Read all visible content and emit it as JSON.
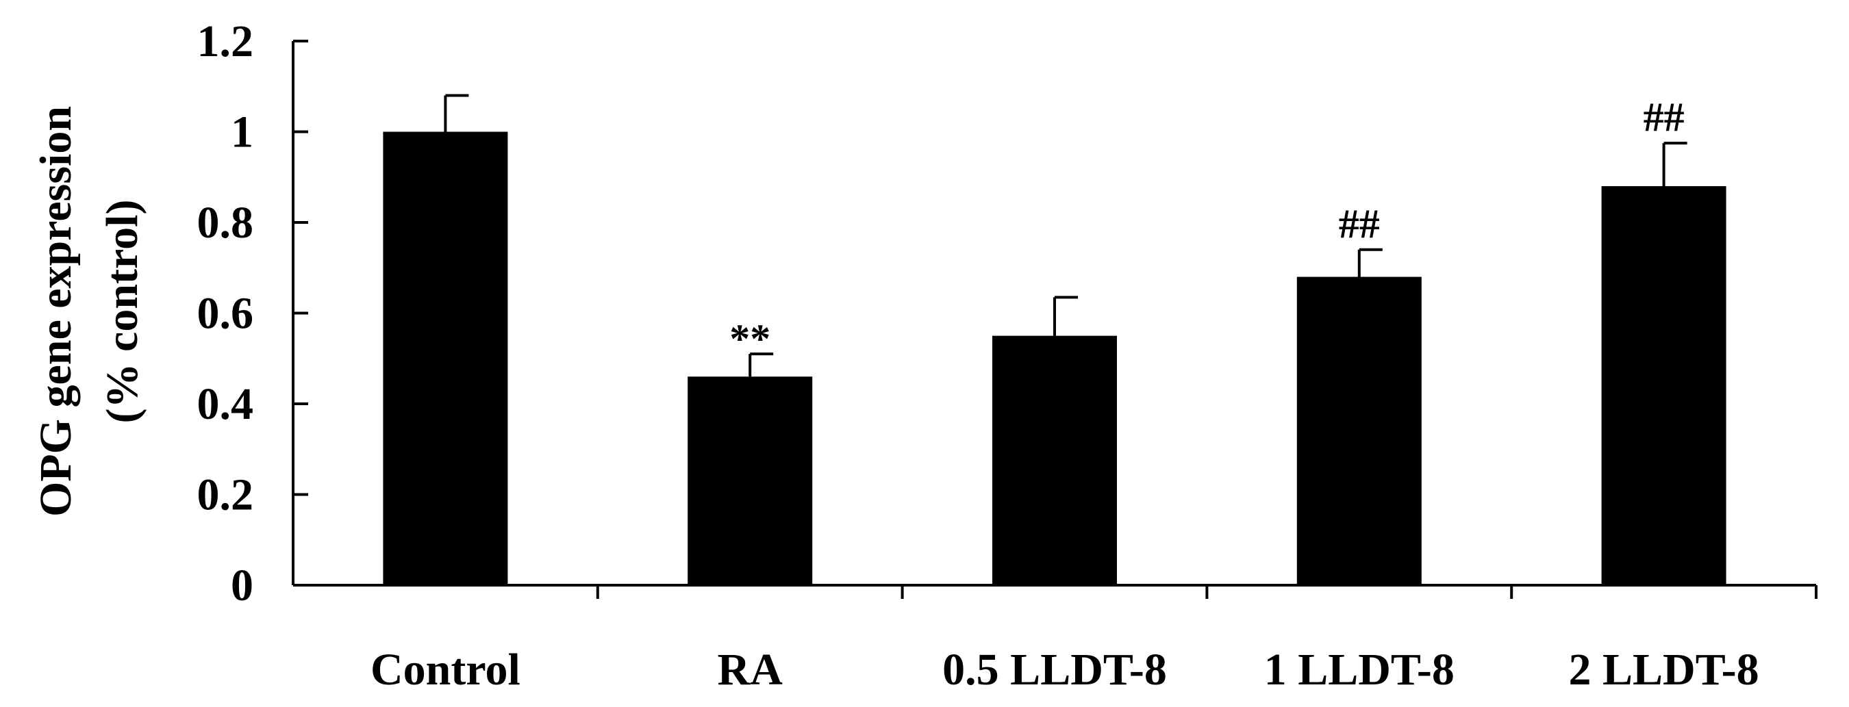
{
  "chart_data": {
    "type": "bar",
    "title": "",
    "ylabel_line1": "OPG gene expression",
    "ylabel_line2": "(% control)",
    "categories": [
      "Control",
      "RA",
      "0.5 LLDT-8",
      "1 LLDT-8",
      "2 LLDT-8"
    ],
    "values": [
      1.0,
      0.46,
      0.55,
      0.68,
      0.88
    ],
    "errors": [
      0.08,
      0.05,
      0.085,
      0.06,
      0.095
    ],
    "annotations": [
      "",
      "**",
      "",
      "##",
      "##"
    ],
    "yticks": [
      "0",
      "0.2",
      "0.4",
      "0.6",
      "0.8",
      "1",
      "1.2"
    ],
    "ylim": [
      0,
      1.2
    ],
    "bar_color": "#000000",
    "grid": false,
    "legend": "none"
  }
}
